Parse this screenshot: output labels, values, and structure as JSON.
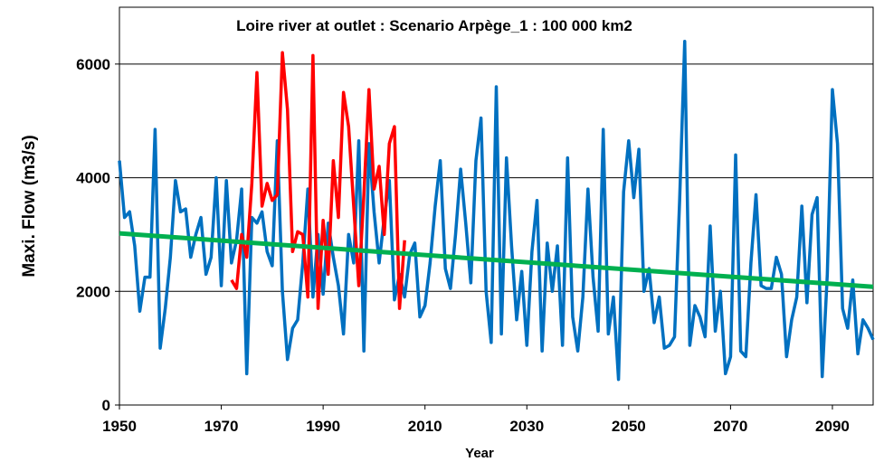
{
  "chart_data": {
    "type": "line",
    "title": "Loire river at outlet : Scenario Arpège_1 : 100 000 km2",
    "x_label": "Year",
    "y_label": "Maxi. Flow (m3/s)",
    "xlim": [
      1950,
      2098
    ],
    "xticks": [
      1950,
      1970,
      1990,
      2010,
      2030,
      2050,
      2070,
      2090
    ],
    "ylim": [
      0,
      7000
    ],
    "yticks": [
      0,
      2000,
      4000,
      6000
    ],
    "grid": true,
    "series": [
      {
        "color": "#0070c0",
        "x": [
          1950,
          1951,
          1952,
          1953,
          1954,
          1955,
          1956,
          1957,
          1958,
          1959,
          1960,
          1961,
          1962,
          1963,
          1964,
          1965,
          1966,
          1967,
          1968,
          1969,
          1970,
          1971,
          1972,
          1973,
          1974,
          1975,
          1976,
          1977,
          1978,
          1979,
          1980,
          1981,
          1982,
          1983,
          1984,
          1985,
          1986,
          1987,
          1988,
          1989,
          1990,
          1991,
          1992,
          1993,
          1994,
          1995,
          1996,
          1997,
          1998,
          1999,
          2000,
          2001,
          2002,
          2003,
          2004,
          2005,
          2006,
          2007,
          2008,
          2009,
          2010,
          2011,
          2012,
          2013,
          2014,
          2015,
          2016,
          2017,
          2018,
          2019,
          2020,
          2021,
          2022,
          2023,
          2024,
          2025,
          2026,
          2027,
          2028,
          2029,
          2030,
          2031,
          2032,
          2033,
          2034,
          2035,
          2036,
          2037,
          2038,
          2039,
          2040,
          2041,
          2042,
          2043,
          2044,
          2045,
          2046,
          2047,
          2048,
          2049,
          2050,
          2051,
          2052,
          2053,
          2054,
          2055,
          2056,
          2057,
          2058,
          2059,
          2060,
          2061,
          2062,
          2063,
          2064,
          2065,
          2066,
          2067,
          2068,
          2069,
          2070,
          2071,
          2072,
          2073,
          2074,
          2075,
          2076,
          2077,
          2078,
          2079,
          2080,
          2081,
          2082,
          2083,
          2084,
          2085,
          2086,
          2087,
          2088,
          2089,
          2090,
          2091,
          2092,
          2093,
          2094,
          2095,
          2096,
          2097,
          2098
        ],
        "values": [
          4300,
          3300,
          3400,
          2800,
          1650,
          2250,
          2250,
          4850,
          1000,
          1700,
          2600,
          3950,
          3400,
          3450,
          2600,
          3000,
          3300,
          2300,
          2600,
          4000,
          2100,
          3950,
          2500,
          2900,
          3800,
          550,
          3300,
          3200,
          3400,
          2700,
          2450,
          4650,
          2000,
          800,
          1350,
          1500,
          2500,
          3800,
          1900,
          3000,
          1950,
          3200,
          2600,
          2100,
          1250,
          3000,
          2500,
          4650,
          950,
          4600,
          3400,
          2500,
          3300,
          3950,
          1850,
          2300,
          1900,
          2650,
          2850,
          1550,
          1750,
          2500,
          3500,
          4300,
          2400,
          2050,
          3000,
          4150,
          3200,
          2150,
          4300,
          5050,
          2000,
          1100,
          5600,
          1250,
          4350,
          2800,
          1500,
          2350,
          1050,
          2700,
          3600,
          950,
          2850,
          2000,
          2800,
          1050,
          4350,
          1550,
          950,
          1900,
          3800,
          2250,
          1300,
          4850,
          1250,
          1900,
          450,
          3750,
          4650,
          3650,
          4500,
          2000,
          2400,
          1450,
          1900,
          1000,
          1050,
          1200,
          3600,
          6400,
          1050,
          1750,
          1550,
          1200,
          3150,
          1300,
          2000,
          550,
          850,
          4400,
          950,
          850,
          2500,
          3700,
          2100,
          2050,
          2050,
          2600,
          2300,
          850,
          1500,
          1900,
          3500,
          1800,
          3350,
          3650,
          500,
          2300,
          5550,
          4600,
          1700,
          1350,
          2200,
          900,
          1500,
          1350,
          1150
        ]
      },
      {
        "color": "#ff0000",
        "x": [
          1972,
          1973,
          1974,
          1975,
          1976,
          1977,
          1978,
          1979,
          1980,
          1981,
          1982,
          1983,
          1984,
          1985,
          1986,
          1987,
          1988,
          1989,
          1990,
          1991,
          1992,
          1993,
          1994,
          1995,
          1996,
          1997,
          1998,
          1999,
          2000,
          2001,
          2002,
          2003,
          2004,
          2005,
          2006
        ],
        "values": [
          2200,
          2050,
          3000,
          2600,
          3900,
          5850,
          3500,
          3900,
          3600,
          3700,
          6200,
          5200,
          2700,
          3050,
          3000,
          1900,
          6150,
          1700,
          3250,
          2300,
          4300,
          3300,
          5500,
          4900,
          3500,
          2100,
          3700,
          5550,
          3800,
          4200,
          3000,
          4600,
          4900,
          1700,
          2900
        ]
      },
      {
        "color": "#00b050",
        "x": [
          1950,
          2098
        ],
        "values": [
          3020,
          2080
        ]
      }
    ]
  }
}
